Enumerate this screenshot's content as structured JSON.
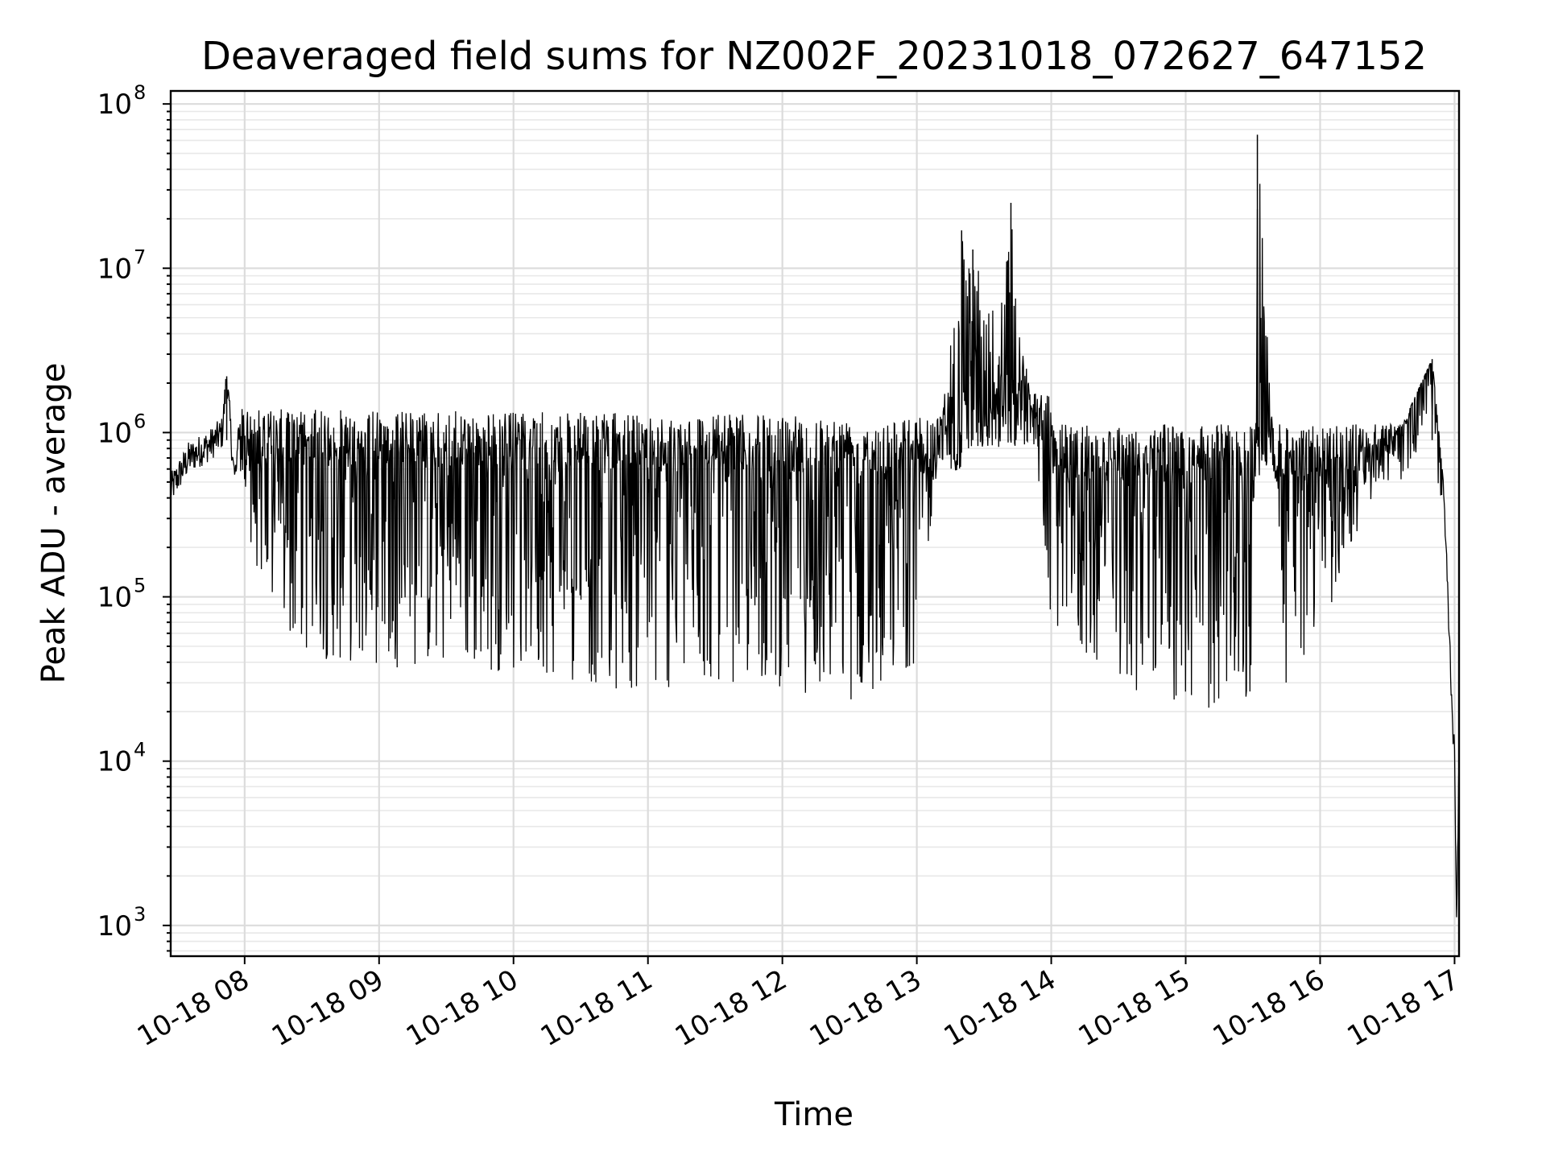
{
  "chart_data": {
    "type": "line",
    "title": "Deaveraged field sums for NZ002F_20231018_072627_647152",
    "xlabel": "Time",
    "ylabel": "Peak ADU - average",
    "yscale": "log",
    "grid": "on (major and minor)",
    "x_range": [
      "2023-10-18 07:27",
      "2023-10-18 17:02"
    ],
    "ylim": [
      650,
      120000000
    ],
    "x_ticks": [
      "10-18 08",
      "10-18 09",
      "10-18 10",
      "10-18 11",
      "10-18 12",
      "10-18 13",
      "10-18 14",
      "10-18 15",
      "10-18 16",
      "10-18 17"
    ],
    "y_ticks": [
      {
        "base": "10",
        "exp": "3"
      },
      {
        "base": "10",
        "exp": "4"
      },
      {
        "base": "10",
        "exp": "5"
      },
      {
        "base": "10",
        "exp": "6"
      },
      {
        "base": "10",
        "exp": "7"
      },
      {
        "base": "10",
        "exp": "8"
      }
    ],
    "series": [
      {
        "color": "#000000",
        "description_points": [
          [
            "07:27",
            450000
          ],
          [
            "07:35",
            700000
          ],
          [
            "07:45",
            850000
          ],
          [
            "07:50",
            1000000
          ],
          [
            "07:52",
            2200000
          ],
          [
            "07:55",
            600000
          ],
          [
            "08:00",
            300000
          ],
          [
            "08:05",
            150000
          ],
          [
            "08:15",
            60000
          ],
          [
            "08:25",
            45000
          ],
          [
            "08:40",
            40000
          ],
          [
            "09:00",
            38000
          ],
          [
            "09:30",
            35000
          ],
          [
            "10:00",
            35000
          ],
          [
            "10:30",
            30000
          ],
          [
            "11:00",
            25000
          ],
          [
            "11:30",
            30000
          ],
          [
            "12:00",
            28000
          ],
          [
            "12:30",
            22000
          ],
          [
            "13:00",
            40000
          ],
          [
            "13:20",
            17000000
          ],
          [
            "13:25",
            13000000
          ],
          [
            "13:35",
            5000000
          ],
          [
            "13:42",
            25000000
          ],
          [
            "13:50",
            2000000
          ],
          [
            "14:00",
            60000
          ],
          [
            "14:30",
            30000
          ],
          [
            "15:00",
            20000
          ],
          [
            "15:30",
            20000
          ],
          [
            "15:32",
            65000000
          ],
          [
            "15:45",
            25000
          ],
          [
            "16:00",
            60000
          ],
          [
            "16:30",
            700000
          ],
          [
            "16:50",
            2800000
          ],
          [
            "16:55",
            500000
          ],
          [
            "16:57",
            100000
          ],
          [
            "16:59",
            20000
          ],
          [
            "17:00",
            10000
          ],
          [
            "17:01",
            1100
          ],
          [
            "17:02",
            10000
          ]
        ]
      }
    ]
  }
}
